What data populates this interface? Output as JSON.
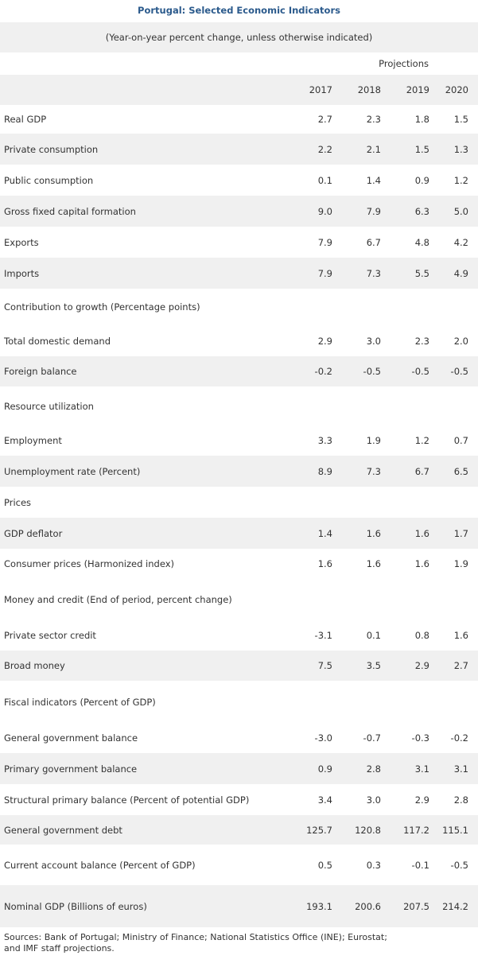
{
  "title": "Portugal: Selected Economic Indicators",
  "subtitle": "(Year-on-year percent change, unless otherwise indicated)",
  "projections_label": "Projections",
  "years": [
    "2017",
    "2018",
    "2019",
    "2020"
  ],
  "rows": [
    {
      "label": "Real GDP",
      "values": [
        "2.7",
        "2.3",
        "1.8",
        "1.5"
      ]
    },
    {
      "label": "Private consumption",
      "values": [
        "2.2",
        "2.1",
        "1.5",
        "1.3"
      ]
    },
    {
      "label": "Public consumption",
      "values": [
        "0.1",
        "1.4",
        "0.9",
        "1.2"
      ]
    },
    {
      "label": "Gross fixed capital formation",
      "values": [
        "9.0",
        "7.9",
        "6.3",
        "5.0"
      ]
    },
    {
      "label": "Exports",
      "values": [
        "7.9",
        "6.7",
        "4.8",
        "4.2"
      ]
    },
    {
      "label": "Imports",
      "values": [
        "7.9",
        "7.3",
        "5.5",
        "4.9"
      ]
    },
    {
      "label": "Contribution to growth (Percentage points)",
      "values": null
    },
    {
      "label": "Total domestic demand",
      "values": [
        "2.9",
        "3.0",
        "2.3",
        "2.0"
      ]
    },
    {
      "label": "Foreign balance",
      "values": [
        "-0.2",
        "-0.5",
        "-0.5",
        "-0.5"
      ]
    },
    {
      "label": "Resource utilization",
      "values": null
    },
    {
      "label": "Employment",
      "values": [
        "3.3",
        "1.9",
        "1.2",
        "0.7"
      ]
    },
    {
      "label": "Unemployment rate (Percent)",
      "values": [
        "8.9",
        "7.3",
        "6.7",
        "6.5"
      ]
    },
    {
      "label": "Prices",
      "values": null
    },
    {
      "label": "GDP deflator",
      "values": [
        "1.4",
        "1.6",
        "1.6",
        "1.7"
      ]
    },
    {
      "label": "Consumer prices (Harmonized index)",
      "values": [
        "1.6",
        "1.6",
        "1.6",
        "1.9"
      ]
    },
    {
      "label": "Money and credit (End of period, percent change)",
      "values": null
    },
    {
      "label": "Private sector credit",
      "values": [
        "-3.1",
        "0.1",
        "0.8",
        "1.6"
      ]
    },
    {
      "label": "Broad money",
      "values": [
        "7.5",
        "3.5",
        "2.9",
        "2.7"
      ]
    },
    {
      "label": "Fiscal indicators (Percent of GDP)",
      "values": null
    },
    {
      "label": "General government balance",
      "values": [
        "-3.0",
        "-0.7",
        "-0.3",
        "-0.2"
      ]
    },
    {
      "label": "Primary government balance",
      "values": [
        "0.9",
        "2.8",
        "3.1",
        "3.1"
      ]
    },
    {
      "label": "Structural primary balance (Percent of potential GDP)",
      "values": [
        "3.4",
        "3.0",
        "2.9",
        "2.8"
      ]
    },
    {
      "label": "General government debt",
      "values": [
        "125.7",
        "120.8",
        "117.2",
        "115.1"
      ]
    },
    {
      "label": "Current account balance (Percent of GDP)",
      "values": [
        "0.5",
        "0.3",
        "-0.1",
        "-0.5"
      ]
    },
    {
      "label": "Nominal GDP (Billions of euros)",
      "values": [
        "193.1",
        "200.6",
        "207.5",
        "214.2"
      ]
    }
  ],
  "footer_line1": "Sources: Bank of Portugal; Ministry of Finance; National Statistics Office (INE); Eurostat;",
  "footer_line2": "and IMF staff projections."
}
